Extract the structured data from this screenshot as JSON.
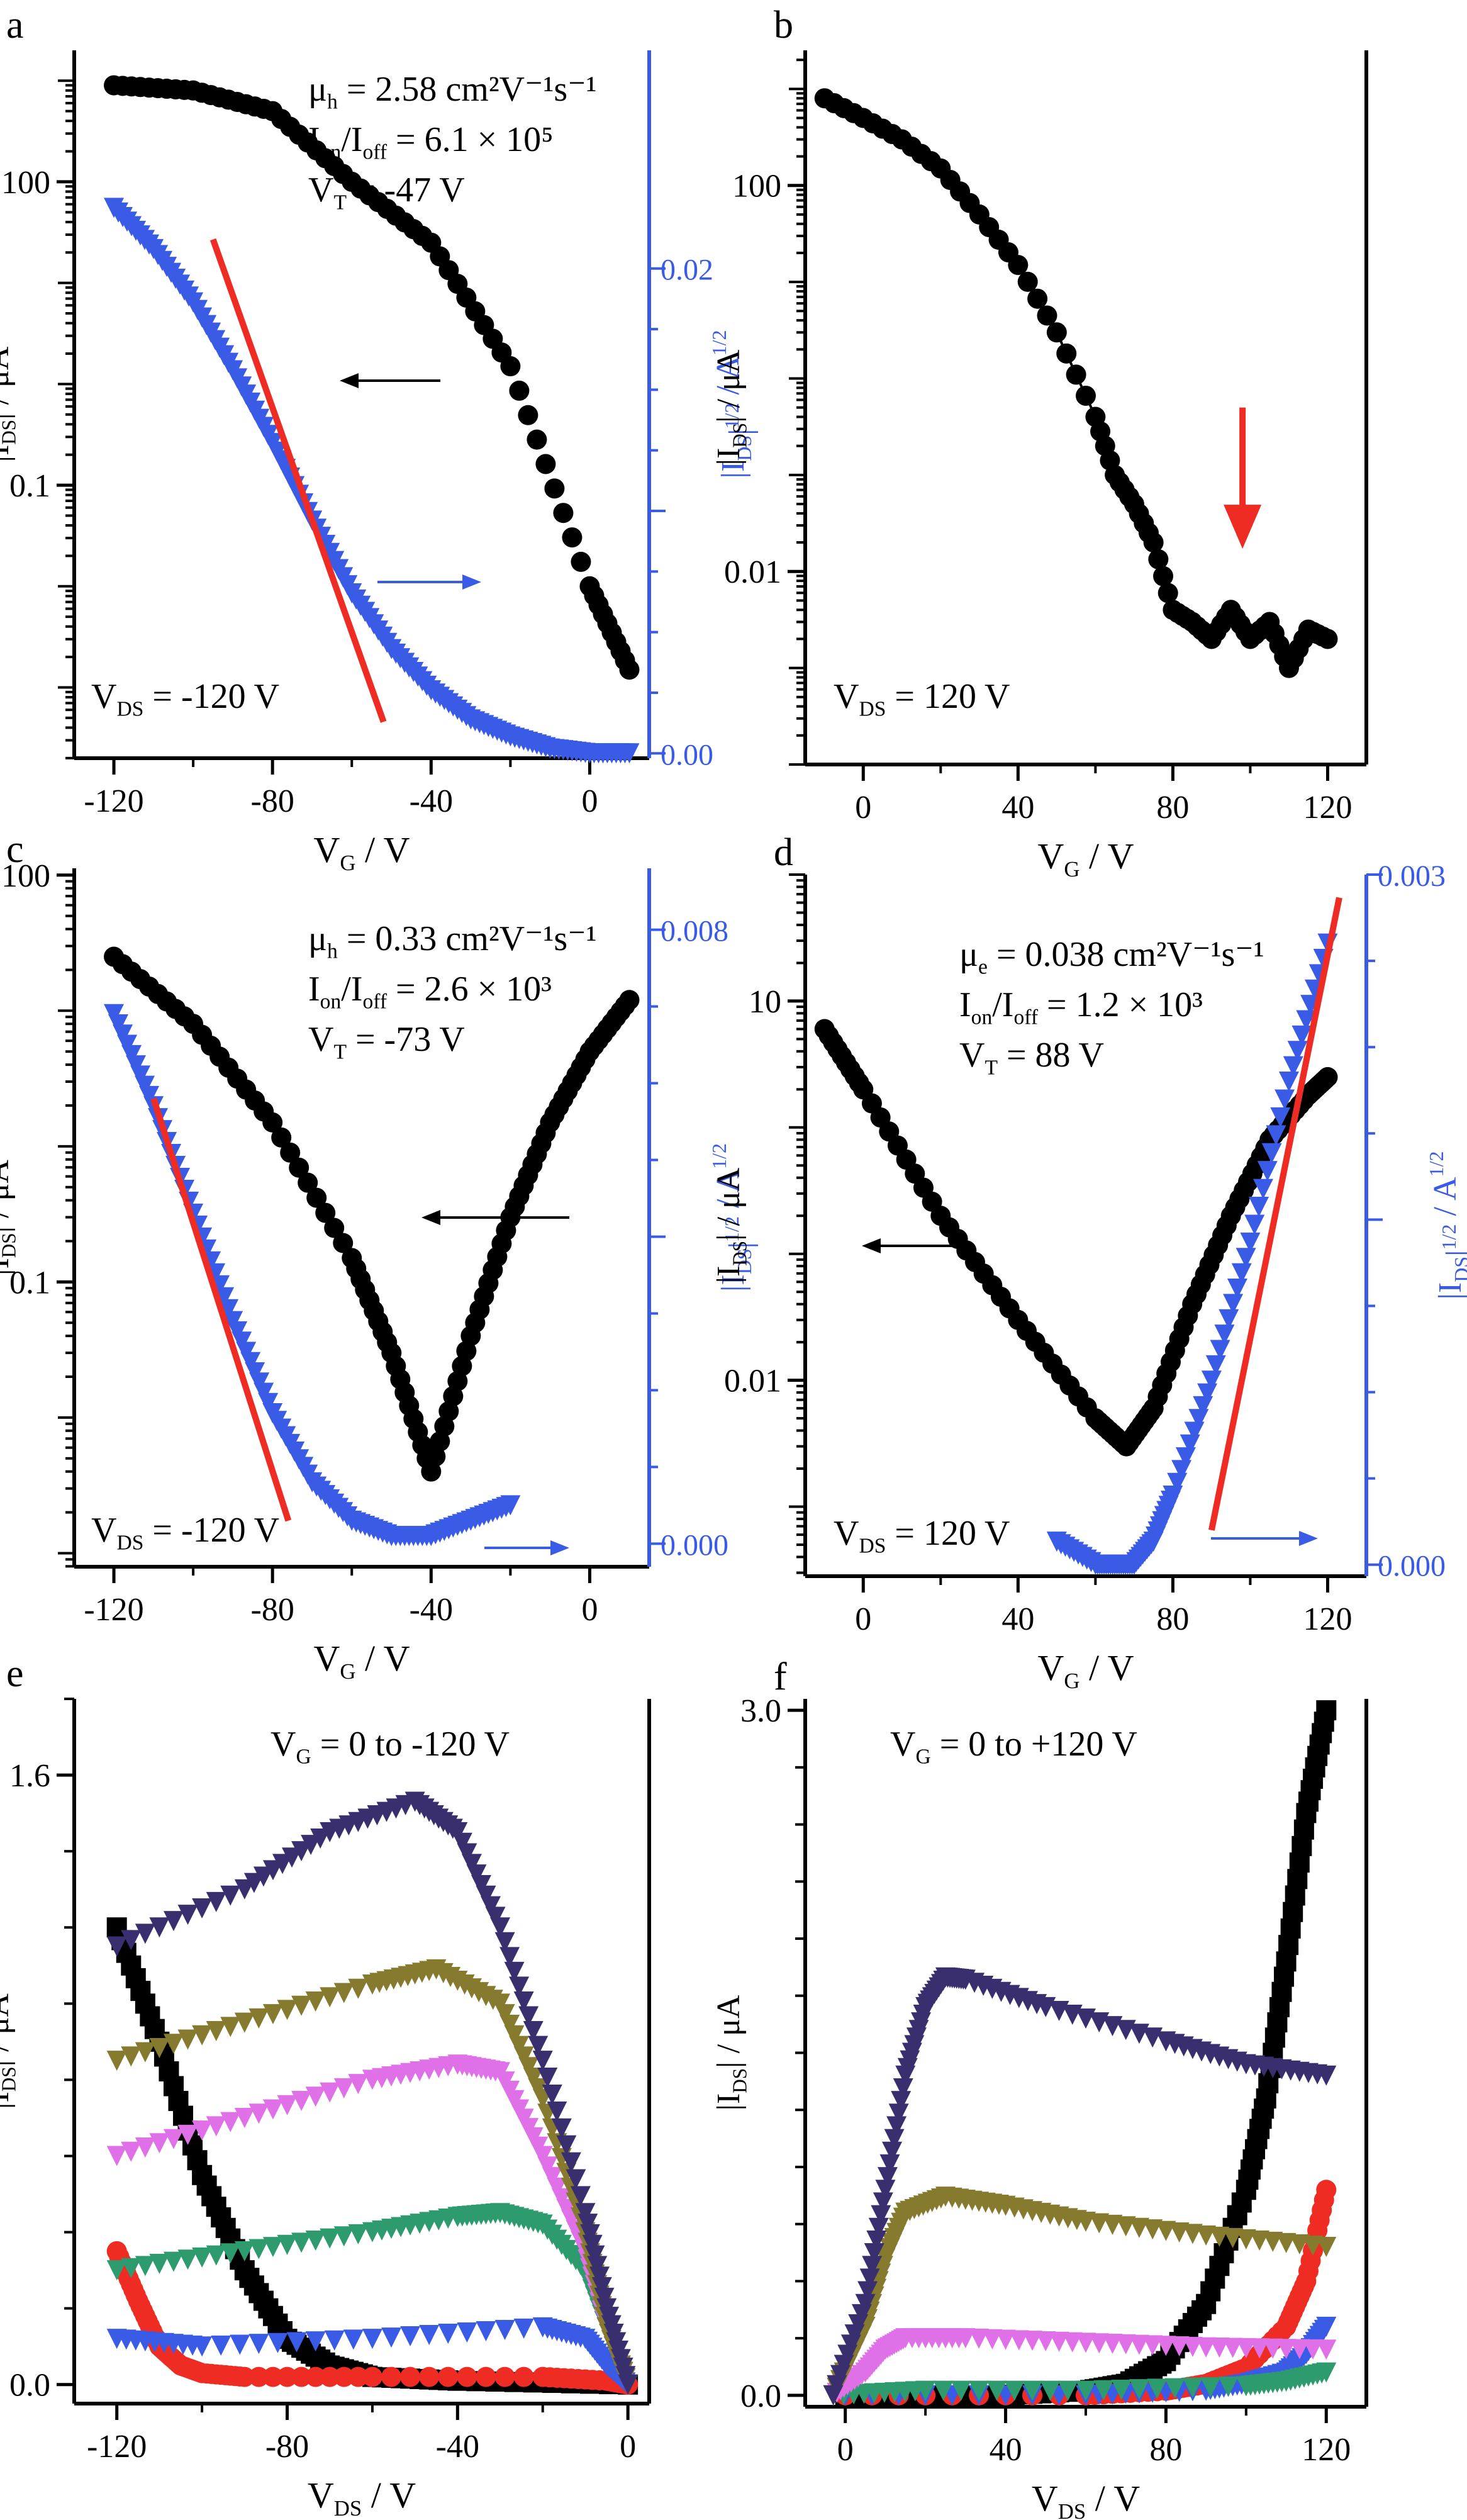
{
  "chart_data": [
    {
      "panel_label": "a",
      "type": "line",
      "scale_left": "log",
      "xlabel": "V_G / V",
      "ylabel_left": "|I_DS| / μA",
      "ylabel_right": "|I_DS|^1/2 / A^1/2",
      "xlim": [
        -130,
        15
      ],
      "ylim_left_log10": [
        -3.7,
        3.3
      ],
      "ylim_right": [
        -0.0002,
        0.029
      ],
      "x_ticks": [
        -120,
        -80,
        -40,
        0
      ],
      "x_tick_labels": [
        "-120",
        "-80",
        "-40",
        "0"
      ],
      "y_left_ticks": [
        100,
        0.1
      ],
      "y_left_tick_labels": [
        "100",
        "0.1"
      ],
      "y_right_ticks": [
        0.0,
        0.02
      ],
      "y_right_tick_labels": [
        "0.00",
        "0.02"
      ],
      "annotations": [
        "μh = 2.58 cm²V⁻¹s⁻¹",
        "Ion/Ioff = 6.1 × 10⁵",
        "VT = -47 V",
        "VDS = -120 V"
      ],
      "colors": {
        "series_1": "#000000",
        "series_2": "#3a5be6",
        "fit": "#ee2c24"
      },
      "series": [
        {
          "axis": "left",
          "marker": "circle",
          "color": "#000000",
          "x": [
            -120,
            -100,
            -80,
            -60,
            -40,
            -20,
            0,
            10
          ],
          "y": [
            900,
            800,
            500,
            100,
            25,
            1.5,
            0.01,
            0.0015
          ]
        },
        {
          "axis": "right",
          "marker": "triangle",
          "color": "#3a5be6",
          "x": [
            -120,
            -110,
            -100,
            -90,
            -80,
            -70,
            -60,
            -50,
            -40,
            -30,
            -20,
            -10,
            0,
            10
          ],
          "y": [
            0.0225,
            0.0208,
            0.0186,
            0.0158,
            0.0128,
            0.0096,
            0.0066,
            0.0043,
            0.0026,
            0.0014,
            0.0007,
            0.0002,
            0.0,
            0.0
          ]
        }
      ],
      "fit_line": {
        "axis": "right",
        "x": [
          -95,
          -52
        ],
        "y": [
          0.0212,
          0.0013
        ]
      }
    },
    {
      "panel_label": "b",
      "type": "scatter",
      "scale_left": "log",
      "xlabel": "V_G / V",
      "ylabel_left": "|I_DS| / μA",
      "xlim": [
        -15,
        130
      ],
      "ylim_left_log10": [
        -4.0,
        3.4
      ],
      "x_ticks": [
        0,
        40,
        80,
        120
      ],
      "x_tick_labels": [
        "0",
        "40",
        "80",
        "120"
      ],
      "y_left_ticks": [
        100,
        0.01
      ],
      "y_left_tick_labels": [
        "100",
        "0.01"
      ],
      "annotations": [
        "VDS = 120 V"
      ],
      "colors": {
        "series_1": "#000000",
        "arrow": "#ee2c24"
      },
      "series": [
        {
          "axis": "left",
          "marker": "circle",
          "color": "#000000",
          "x": [
            -10,
            0,
            10,
            20,
            30,
            40,
            50,
            60,
            65,
            70,
            75,
            80,
            85,
            90,
            95,
            100,
            105,
            110,
            115,
            120
          ],
          "y": [
            800,
            500,
            300,
            150,
            50,
            15,
            3,
            0.4,
            0.1,
            0.05,
            0.02,
            0.004,
            0.003,
            0.002,
            0.004,
            0.002,
            0.003,
            0.001,
            0.0025,
            0.002
          ]
        }
      ],
      "arrow": {
        "x": 98,
        "y_from": 0.5,
        "y_to": 0.02
      }
    },
    {
      "panel_label": "c",
      "type": "line",
      "scale_left": "log",
      "xlabel": "V_G / V",
      "ylabel_left": "|I_DS| / μA",
      "ylabel_right": "|I_DS|^1/2 / A^1/2",
      "xlim": [
        -130,
        15
      ],
      "ylim_left_log10": [
        -3.1,
        2.05
      ],
      "ylim_right": [
        -0.0003,
        0.0088
      ],
      "x_ticks": [
        -120,
        -80,
        -40,
        0
      ],
      "x_tick_labels": [
        "-120",
        "-80",
        "-40",
        "0"
      ],
      "y_left_ticks": [
        100,
        0.1
      ],
      "y_left_tick_labels": [
        "100",
        "0.1"
      ],
      "y_right_ticks": [
        0.0,
        0.008
      ],
      "y_right_tick_labels": [
        "0.000",
        "0.008"
      ],
      "annotations": [
        "μh = 0.33 cm²V⁻¹s⁻¹",
        "Ion/Ioff = 2.6 × 10³",
        "VT = -73 V",
        "VDS = -120 V"
      ],
      "colors": {
        "series_1": "#000000",
        "series_2": "#3a5be6",
        "fit": "#ee2c24"
      },
      "series": [
        {
          "axis": "left",
          "marker": "circle",
          "color": "#000000",
          "x": [
            -120,
            -100,
            -80,
            -60,
            -50,
            -40,
            -30,
            -20,
            -10,
            0,
            10
          ],
          "y": [
            25,
            8,
            1.5,
            0.15,
            0.03,
            0.004,
            0.04,
            0.3,
            1.5,
            5,
            12
          ]
        },
        {
          "axis": "right",
          "marker": "triangle",
          "color": "#3a5be6",
          "x": [
            -120,
            -110,
            -100,
            -90,
            -80,
            -70,
            -60,
            -50,
            -40,
            -30,
            -20
          ],
          "y": [
            0.0069,
            0.0057,
            0.0043,
            0.0029,
            0.0017,
            0.0008,
            0.0003,
            0.0001,
            0.0001,
            0.0003,
            0.0005
          ]
        }
      ],
      "fit_line": {
        "axis": "right",
        "x": [
          -110,
          -76
        ],
        "y": [
          0.0058,
          0.0003
        ]
      }
    },
    {
      "panel_label": "d",
      "type": "line",
      "scale_left": "log",
      "xlabel": "V_G / V",
      "ylabel_left": "|I_DS| / μA",
      "ylabel_right": "|I_DS|^1/2 / A^1/2",
      "xlim": [
        -15,
        130
      ],
      "ylim_left_log10": [
        -3.55,
        2.0
      ],
      "ylim_right": [
        -5e-05,
        0.003
      ],
      "x_ticks": [
        0,
        40,
        80,
        120
      ],
      "x_tick_labels": [
        "0",
        "40",
        "80",
        "120"
      ],
      "y_left_ticks": [
        10,
        0.01
      ],
      "y_left_tick_labels": [
        "10",
        "0.01"
      ],
      "y_right_ticks": [
        0.0,
        0.003
      ],
      "y_right_tick_labels": [
        "0.000",
        "0.003"
      ],
      "annotations": [
        "μe = 0.038 cm²V⁻¹s⁻¹",
        "Ion/Ioff = 1.2 × 10³",
        "VT = 88 V",
        "VDS = 120 V"
      ],
      "colors": {
        "series_1": "#000000",
        "series_2": "#3a5be6",
        "fit": "#ee2c24"
      },
      "series": [
        {
          "axis": "left",
          "marker": "circle",
          "color": "#000000",
          "x": [
            -10,
            0,
            20,
            40,
            60,
            68,
            75,
            85,
            95,
            105,
            115,
            120
          ],
          "y": [
            6,
            2,
            0.2,
            0.03,
            0.005,
            0.003,
            0.006,
            0.04,
            0.2,
            0.8,
            1.8,
            2.5
          ]
        },
        {
          "axis": "right",
          "marker": "triangle",
          "color": "#3a5be6",
          "x": [
            50,
            60,
            65,
            70,
            75,
            80,
            90,
            100,
            110,
            120
          ],
          "y": [
            0.0001,
            0.0,
            0.0,
            0.0,
            0.0001,
            0.0003,
            0.0008,
            0.0014,
            0.0021,
            0.0027
          ]
        }
      ],
      "fit_line": {
        "axis": "right",
        "x": [
          90,
          123
        ],
        "y": [
          0.00015,
          0.0029
        ]
      }
    },
    {
      "panel_label": "e",
      "type": "line",
      "xlabel": "V_DS / V",
      "ylabel_left": "|I_DS| / μA",
      "xlim": [
        -130,
        5
      ],
      "ylim_left": [
        -0.05,
        1.8
      ],
      "x_ticks": [
        -120,
        -80,
        -40,
        0
      ],
      "x_tick_labels": [
        "-120",
        "-80",
        "-40",
        "0"
      ],
      "y_left_ticks": [
        0.0,
        1.6
      ],
      "y_left_tick_labels": [
        "0.0",
        "1.6"
      ],
      "annotations": [
        "VG = 0 to -120 V"
      ],
      "colors": {
        "vg0": "#000000",
        "vg1": "#ee2c24",
        "vg2": "#3a5be6",
        "vg3": "#2e9b6e",
        "vg4": "#e070e8",
        "vg5": "#857a2e",
        "vg6": "#3a2f6e"
      },
      "series": [
        {
          "marker": "square",
          "color": "#000000",
          "x": [
            -120,
            -110,
            -100,
            -90,
            -80,
            -70,
            -60,
            -40,
            0
          ],
          "y": [
            1.2,
            0.9,
            0.55,
            0.3,
            0.12,
            0.05,
            0.02,
            0.01,
            0.0
          ]
        },
        {
          "marker": "circle",
          "color": "#ee2c24",
          "x": [
            -120,
            -115,
            -110,
            -105,
            -100,
            -90,
            -60,
            -20,
            -5,
            0
          ],
          "y": [
            0.35,
            0.22,
            0.1,
            0.05,
            0.03,
            0.02,
            0.02,
            0.02,
            0.01,
            0.0
          ]
        },
        {
          "marker": "triangle",
          "color": "#3a5be6",
          "x": [
            -120,
            -100,
            -60,
            -20,
            -10,
            -5,
            0
          ],
          "y": [
            0.12,
            0.1,
            0.12,
            0.15,
            0.12,
            0.05,
            0.0
          ]
        },
        {
          "marker": "triangle",
          "color": "#2e9b6e",
          "x": [
            -120,
            -90,
            -60,
            -40,
            -30,
            -20,
            -10,
            -5,
            0
          ],
          "y": [
            0.3,
            0.35,
            0.4,
            0.44,
            0.45,
            0.42,
            0.3,
            0.15,
            0.0
          ]
        },
        {
          "marker": "triangle",
          "color": "#e070e8",
          "x": [
            -120,
            -90,
            -60,
            -40,
            -30,
            -20,
            -10,
            -5,
            0
          ],
          "y": [
            0.6,
            0.7,
            0.8,
            0.84,
            0.82,
            0.6,
            0.35,
            0.15,
            0.0
          ]
        },
        {
          "marker": "triangle",
          "color": "#857a2e",
          "x": [
            -120,
            -90,
            -60,
            -45,
            -30,
            -20,
            -10,
            -5,
            0
          ],
          "y": [
            0.85,
            0.95,
            1.05,
            1.09,
            1.0,
            0.75,
            0.4,
            0.15,
            0.0
          ]
        },
        {
          "marker": "triangle",
          "color": "#3a2f6e",
          "x": [
            -120,
            -90,
            -70,
            -50,
            -40,
            -30,
            -20,
            -10,
            -5,
            0
          ],
          "y": [
            1.15,
            1.3,
            1.45,
            1.53,
            1.45,
            1.2,
            0.85,
            0.45,
            0.2,
            0.0
          ]
        }
      ]
    },
    {
      "panel_label": "f",
      "type": "line",
      "xlabel": "V_DS / V",
      "ylabel_left": "|I_DS| / μA",
      "xlim": [
        -10,
        130
      ],
      "ylim_left": [
        -0.05,
        3.05
      ],
      "x_ticks": [
        0,
        40,
        80,
        120
      ],
      "x_tick_labels": [
        "0",
        "40",
        "80",
        "120"
      ],
      "y_left_ticks": [
        0.0,
        3.0
      ],
      "y_left_tick_labels": [
        "0.0",
        "3.0"
      ],
      "annotations": [
        "VG = 0 to +120 V"
      ],
      "colors": {
        "vg0": "#000000",
        "vg1": "#ee2c24",
        "vg2": "#3a5be6",
        "vg3": "#2e9b6e",
        "vg4": "#e070e8",
        "vg5": "#857a2e",
        "vg6": "#3a2f6e"
      },
      "series": [
        {
          "marker": "square",
          "color": "#000000",
          "x": [
            0,
            40,
            60,
            70,
            80,
            90,
            100,
            105,
            110,
            115,
            120
          ],
          "y": [
            0.0,
            0.0,
            0.02,
            0.05,
            0.15,
            0.4,
            0.9,
            1.3,
            1.9,
            2.55,
            3.0
          ]
        },
        {
          "marker": "circle",
          "color": "#ee2c24",
          "x": [
            0,
            60,
            80,
            90,
            100,
            110,
            115,
            120
          ],
          "y": [
            0.0,
            0.0,
            0.02,
            0.05,
            0.12,
            0.3,
            0.5,
            0.9
          ]
        },
        {
          "marker": "triangle",
          "color": "#3a5be6",
          "x": [
            0,
            60,
            90,
            100,
            110,
            115,
            120
          ],
          "y": [
            0.0,
            0.0,
            0.02,
            0.05,
            0.1,
            0.18,
            0.3
          ]
        },
        {
          "marker": "triangle",
          "color": "#2e9b6e",
          "x": [
            -3,
            20,
            60,
            100,
            110,
            120
          ],
          "y": [
            0.0,
            0.02,
            0.02,
            0.04,
            0.06,
            0.1
          ]
        },
        {
          "marker": "triangle",
          "color": "#e070e8",
          "x": [
            -3,
            5,
            10,
            15,
            30,
            60,
            90,
            120
          ],
          "y": [
            0.0,
            0.1,
            0.2,
            0.25,
            0.25,
            0.23,
            0.21,
            0.2
          ]
        },
        {
          "marker": "triangle",
          "color": "#857a2e",
          "x": [
            -3,
            5,
            10,
            15,
            25,
            40,
            60,
            90,
            120
          ],
          "y": [
            0.0,
            0.3,
            0.6,
            0.8,
            0.87,
            0.83,
            0.76,
            0.7,
            0.65
          ]
        },
        {
          "marker": "triangle",
          "color": "#3a2f6e",
          "x": [
            -3,
            5,
            10,
            15,
            20,
            25,
            30,
            50,
            80,
            100,
            120
          ],
          "y": [
            0.0,
            0.4,
            0.9,
            1.4,
            1.7,
            1.83,
            1.82,
            1.7,
            1.55,
            1.45,
            1.4
          ]
        }
      ]
    }
  ]
}
